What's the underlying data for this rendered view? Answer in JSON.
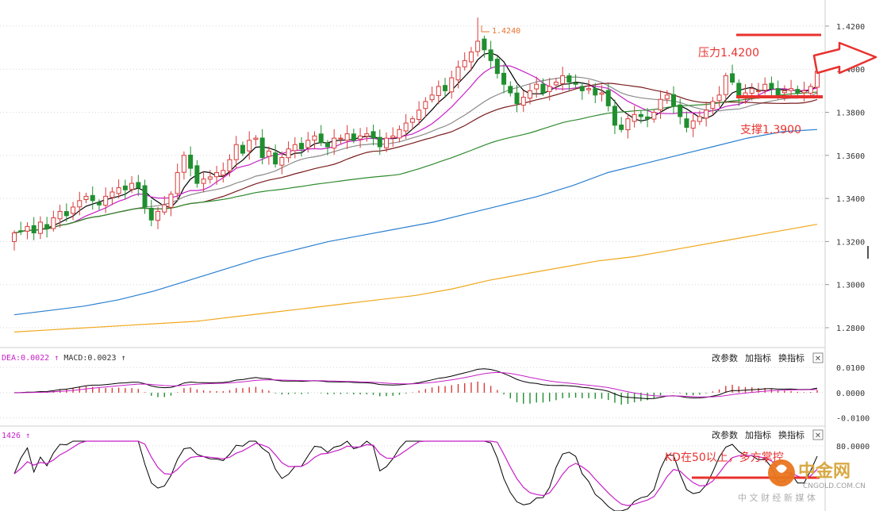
{
  "chart_data": [
    {
      "type": "candlestick",
      "y_ticks": [
        "1.4200",
        "1.4000",
        "1.3800",
        "1.3600",
        "1.3400",
        "1.3200",
        "1.3000",
        "1.2800"
      ],
      "ylim": [
        1.273,
        1.4255
      ],
      "high_label": "1.4240",
      "high_value": 1.424,
      "high_index": 71,
      "closes": [
        1.324,
        1.325,
        1.327,
        1.324,
        1.329,
        1.326,
        1.331,
        1.334,
        1.332,
        1.336,
        1.339,
        1.341,
        1.339,
        1.337,
        1.341,
        1.343,
        1.345,
        1.344,
        1.347,
        1.345,
        1.336,
        1.33,
        1.334,
        1.337,
        1.342,
        1.352,
        1.36,
        1.354,
        1.347,
        1.349,
        1.35,
        1.352,
        1.353,
        1.358,
        1.365,
        1.361,
        1.367,
        1.368,
        1.359,
        1.362,
        1.356,
        1.359,
        1.363,
        1.365,
        1.363,
        1.367,
        1.369,
        1.366,
        1.364,
        1.368,
        1.368,
        1.37,
        1.367,
        1.369,
        1.37,
        1.368,
        1.364,
        1.368,
        1.369,
        1.372,
        1.375,
        1.377,
        1.381,
        1.385,
        1.388,
        1.392,
        1.39,
        1.396,
        1.401,
        1.404,
        1.408,
        1.413,
        1.409,
        1.404,
        1.398,
        1.393,
        1.389,
        1.384,
        1.387,
        1.39,
        1.393,
        1.389,
        1.392,
        1.394,
        1.397,
        1.394,
        1.393,
        1.39,
        1.391,
        1.388,
        1.389,
        1.383,
        1.374,
        1.372,
        1.377,
        1.379,
        1.378,
        1.377,
        1.38,
        1.386,
        1.388,
        1.383,
        1.378,
        1.373,
        1.376,
        1.378,
        1.381,
        1.385,
        1.388,
        1.397,
        1.394,
        1.387,
        1.389,
        1.391,
        1.39,
        1.393,
        1.391,
        1.388,
        1.39,
        1.391,
        1.389,
        1.39,
        1.392,
        1.399
      ],
      "ma_lines": [
        {
          "color": "#000000",
          "period": 5
        },
        {
          "color": "#c81fc8",
          "period": 10
        },
        {
          "color": "#8a8a8a",
          "period": 20
        },
        {
          "color": "#7a1c1c",
          "period": 30
        },
        {
          "color": "#2f8a2f",
          "period": 60
        },
        {
          "color": "#2a7fd0",
          "values": [
            1.286,
            1.288,
            1.29,
            1.293,
            1.297,
            1.302,
            1.307,
            1.312,
            1.316,
            1.32,
            1.323,
            1.326,
            1.329,
            1.333,
            1.337,
            1.341,
            1.346,
            1.352,
            1.356,
            1.36,
            1.364,
            1.368,
            1.371,
            1.372
          ]
        },
        {
          "color": "#f0a81e",
          "values": [
            1.278,
            1.279,
            1.28,
            1.281,
            1.282,
            1.283,
            1.285,
            1.287,
            1.289,
            1.291,
            1.293,
            1.295,
            1.298,
            1.302,
            1.305,
            1.308,
            1.311,
            1.313,
            1.316,
            1.319,
            1.322,
            1.325,
            1.328
          ]
        }
      ],
      "annotations": [
        {
          "text": "压力1.4200",
          "value": 1.42
        },
        {
          "text": "支撑1.3900",
          "value": 1.39
        }
      ]
    },
    {
      "type": "macd",
      "label_dea": "DEA:0.0022",
      "label_macd": "MACD:0.0023",
      "arrow": "↑",
      "y_ticks": [
        "0.0100",
        "0.0000",
        "-0.0100"
      ],
      "ylim": [
        -0.012,
        0.011
      ]
    },
    {
      "type": "kd",
      "label": "1426",
      "arrow": "↑",
      "y_ticks": [
        "80.0000"
      ],
      "ylim": [
        10,
        85
      ],
      "annotation": "KD在50以上，多方掌控"
    }
  ],
  "toolbar": {
    "change_params": "改参数",
    "add_indicator": "加指标",
    "swap_indicator": "换指标",
    "close": "✕"
  },
  "watermark": {
    "brand": "中金网",
    "site": "CNGOLD.COM.CN",
    "slogan": "中 文 财 经 新 媒 体"
  },
  "colors": {
    "up": "#d93a3a",
    "down": "#1f8f2f",
    "dif": "#000000",
    "dea": "#c81fc8",
    "annotation": "#e8322f"
  }
}
